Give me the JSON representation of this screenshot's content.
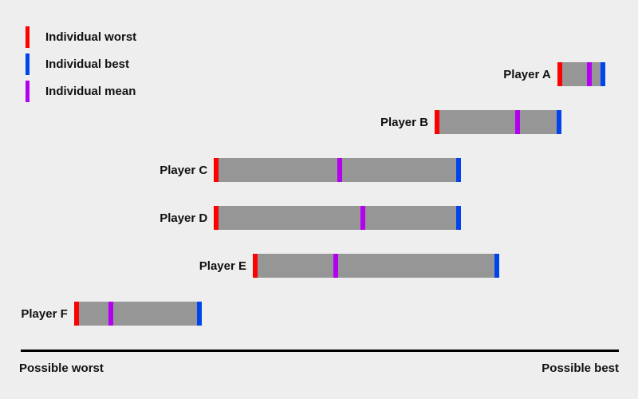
{
  "page": {
    "background_color": "#EEEEEE",
    "text_color": "#111111",
    "axis_line_color": "#000000"
  },
  "legend": {
    "items": [
      {
        "id": "worst",
        "label": "Individual worst",
        "color": "#FF0000"
      },
      {
        "id": "best",
        "label": "Individual best",
        "color": "#0044EE"
      },
      {
        "id": "mean",
        "label": "Individual mean",
        "color": "#B400F0"
      }
    ]
  },
  "axis": {
    "left_label": "Possible worst",
    "right_label": "Possible best"
  },
  "chart_data": {
    "type": "bar",
    "subtype": "horizontal floating range bars with worst/mean/best tick markers",
    "title": "",
    "categories": [
      "Player A",
      "Player B",
      "Player C",
      "Player D",
      "Player E",
      "Player F"
    ],
    "series": [
      {
        "name": "Individual worst",
        "color": "#FF0000",
        "values": [
          0.897,
          0.692,
          0.323,
          0.323,
          0.388,
          0.089
        ]
      },
      {
        "name": "Individual mean",
        "color": "#B400F0",
        "values": [
          0.951,
          0.831,
          0.533,
          0.572,
          0.527,
          0.15
        ]
      },
      {
        "name": "Individual best",
        "color": "#0044EE",
        "values": [
          0.977,
          0.904,
          0.736,
          0.736,
          0.8,
          0.302
        ]
      }
    ],
    "range_fill_color": "#969696",
    "xlim": [
      0,
      1
    ],
    "x_axis_annotations": [
      "Possible worst",
      "Possible best"
    ],
    "grid": false,
    "legend_position": "top-left"
  }
}
